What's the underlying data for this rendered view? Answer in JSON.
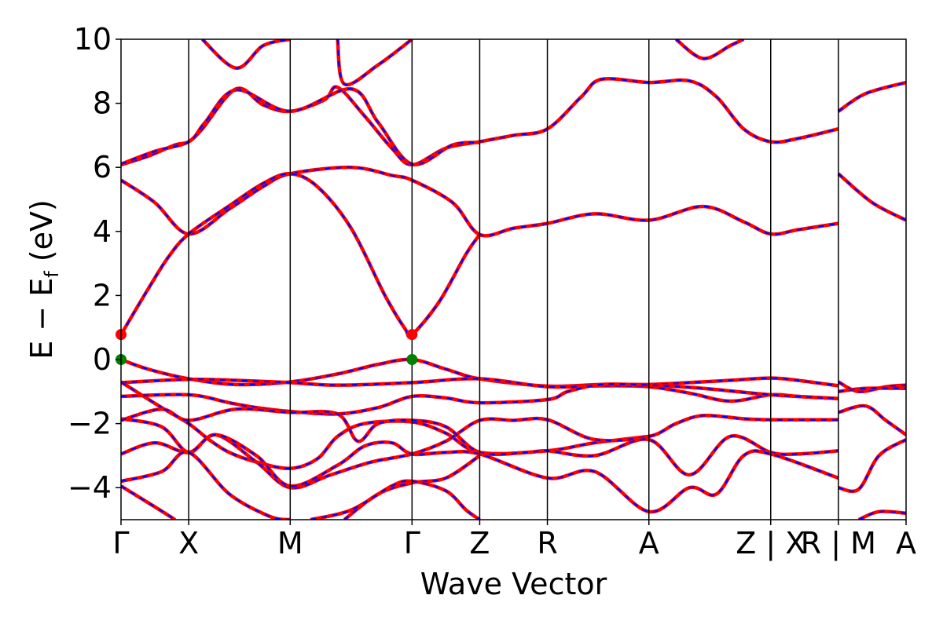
{
  "chart_data": {
    "type": "line",
    "xlabel": "Wave Vector",
    "ylabel": "E − E",
    "ylabel_sub": "f",
    "ylabel_unit": " (eV)",
    "ylim": [
      -5,
      10
    ],
    "yticks": [
      {
        "v": -4,
        "label": "−4"
      },
      {
        "v": -2,
        "label": "−2"
      },
      {
        "v": 0,
        "label": "0"
      },
      {
        "v": 2,
        "label": "2"
      },
      {
        "v": 4,
        "label": "4"
      },
      {
        "v": 6,
        "label": "6"
      },
      {
        "v": 8,
        "label": "8"
      },
      {
        "v": 10,
        "label": "10"
      }
    ],
    "kpath": [
      {
        "label": "Γ",
        "k": 0.0
      },
      {
        "label": "X",
        "k": 0.5
      },
      {
        "label": "M",
        "k": 1.25
      },
      {
        "label": "Γ",
        "k": 2.15
      },
      {
        "label": "Z",
        "k": 2.65
      },
      {
        "label": "R",
        "k": 3.15
      },
      {
        "label": "A",
        "k": 3.9
      },
      {
        "label": "Z | X",
        "k": 4.8
      },
      {
        "label": "R | M",
        "k": 5.3
      },
      {
        "label": "A",
        "k": 5.8
      }
    ],
    "xlim": [
      0,
      5.8
    ],
    "style": {
      "line_color": "#ff0000",
      "dash_color": "#0000ff",
      "cbm_color": "#ff0000",
      "vbm_color": "#008000"
    },
    "markers": [
      {
        "name": "cbm",
        "points": [
          [
            0,
            0.78
          ],
          [
            2.15,
            0.78
          ]
        ]
      },
      {
        "name": "vbm",
        "points": [
          [
            0,
            0
          ],
          [
            2.15,
            0
          ]
        ]
      }
    ],
    "series": [
      {
        "points": [
          [
            0,
            6.08
          ],
          [
            0.2,
            6.35
          ],
          [
            0.4,
            6.7
          ],
          [
            0.5,
            6.8
          ],
          [
            0.6,
            7.2
          ],
          [
            0.85,
            8.45
          ],
          [
            1.05,
            7.95
          ],
          [
            1.25,
            7.75
          ],
          [
            1.5,
            8.1
          ],
          [
            1.6,
            8.5
          ],
          [
            1.8,
            7.6
          ],
          [
            2.0,
            6.6
          ],
          [
            2.15,
            6.08
          ],
          [
            2.4,
            6.6
          ],
          [
            2.65,
            6.8
          ],
          [
            2.9,
            7.0
          ],
          [
            3.15,
            7.2
          ],
          [
            3.4,
            8.2
          ],
          [
            3.55,
            8.75
          ],
          [
            3.9,
            8.65
          ],
          [
            4.2,
            8.7
          ],
          [
            4.4,
            8.2
          ],
          [
            4.6,
            7.2
          ],
          [
            4.8,
            6.8
          ],
          [
            5.0,
            6.9
          ],
          [
            5.3,
            7.2
          ]
        ]
      },
      {
        "points": [
          [
            0,
            6.1
          ],
          [
            0.25,
            6.5
          ],
          [
            0.5,
            6.8
          ],
          [
            0.62,
            7.4
          ],
          [
            0.85,
            8.42
          ],
          [
            1.25,
            7.75
          ],
          [
            1.7,
            8.45
          ],
          [
            1.9,
            7.4
          ],
          [
            2.15,
            6.1
          ],
          [
            2.45,
            6.7
          ],
          [
            2.65,
            6.78
          ]
        ]
      },
      {
        "points": [
          [
            0,
            5.6
          ],
          [
            0.25,
            4.9
          ],
          [
            0.5,
            3.92
          ],
          [
            0.8,
            4.7
          ],
          [
            1.05,
            5.4
          ],
          [
            1.25,
            5.8
          ],
          [
            1.7,
            6.0
          ],
          [
            2.0,
            5.75
          ],
          [
            2.15,
            5.6
          ],
          [
            2.45,
            4.9
          ],
          [
            2.65,
            3.9
          ],
          [
            2.9,
            4.1
          ],
          [
            3.15,
            4.25
          ],
          [
            3.5,
            4.55
          ],
          [
            3.9,
            4.35
          ],
          [
            4.3,
            4.78
          ],
          [
            4.6,
            4.3
          ],
          [
            4.8,
            3.92
          ],
          [
            5.0,
            4.05
          ],
          [
            5.3,
            4.25
          ]
        ]
      },
      {
        "points": [
          [
            0,
            0.78
          ],
          [
            0.2,
            2.2
          ],
          [
            0.35,
            3.2
          ],
          [
            0.5,
            3.92
          ],
          [
            0.8,
            4.8
          ],
          [
            1.05,
            5.5
          ],
          [
            1.25,
            5.8
          ],
          [
            1.45,
            5.4
          ],
          [
            1.7,
            4.1
          ],
          [
            1.95,
            2.0
          ],
          [
            2.1,
            0.95
          ],
          [
            2.15,
            0.78
          ],
          [
            2.35,
            1.8
          ],
          [
            2.55,
            3.3
          ],
          [
            2.65,
            3.9
          ]
        ]
      },
      {
        "points": [
          [
            0,
            0
          ],
          [
            0.2,
            -0.3
          ],
          [
            0.5,
            -0.6
          ],
          [
            0.85,
            -0.78
          ],
          [
            1.25,
            -0.7
          ],
          [
            1.6,
            -0.45
          ],
          [
            1.9,
            -0.15
          ],
          [
            2.15,
            0
          ],
          [
            2.4,
            -0.3
          ],
          [
            2.65,
            -0.6
          ],
          [
            3.15,
            -0.83
          ],
          [
            3.55,
            -0.78
          ],
          [
            3.9,
            -0.78
          ],
          [
            4.2,
            -0.72
          ],
          [
            4.5,
            -0.65
          ],
          [
            4.8,
            -0.58
          ],
          [
            5.0,
            -0.65
          ],
          [
            5.3,
            -0.82
          ]
        ]
      },
      {
        "points": [
          [
            0,
            -0.72
          ],
          [
            0.5,
            -0.62
          ],
          [
            0.85,
            -0.65
          ],
          [
            1.25,
            -0.72
          ],
          [
            1.6,
            -0.8
          ],
          [
            2.15,
            -0.72
          ],
          [
            2.65,
            -0.6
          ],
          [
            3.15,
            -0.85
          ],
          [
            3.55,
            -0.82
          ],
          [
            3.9,
            -0.85
          ],
          [
            4.2,
            -1.05
          ],
          [
            4.5,
            -1.3
          ],
          [
            4.8,
            -1.1
          ],
          [
            5.0,
            -1.15
          ],
          [
            5.3,
            -1.22
          ]
        ]
      },
      {
        "points": [
          [
            0,
            -0.7
          ],
          [
            0.3,
            -1.5
          ],
          [
            0.5,
            -2.0
          ],
          [
            0.65,
            -2.5
          ],
          [
            0.8,
            -2.9
          ],
          [
            1.0,
            -3.2
          ],
          [
            1.25,
            -3.4
          ],
          [
            1.45,
            -3.1
          ],
          [
            1.6,
            -2.4
          ],
          [
            1.8,
            -2.0
          ],
          [
            2.15,
            -1.95
          ],
          [
            2.4,
            -2.3
          ],
          [
            2.65,
            -2.9
          ],
          [
            3.15,
            -2.85
          ],
          [
            3.5,
            -2.6
          ],
          [
            3.9,
            -2.4
          ]
        ]
      },
      {
        "points": [
          [
            0,
            -1.15
          ],
          [
            0.5,
            -1.1
          ],
          [
            0.8,
            -1.35
          ],
          [
            1.0,
            -1.5
          ],
          [
            1.25,
            -1.62
          ],
          [
            1.6,
            -1.7
          ],
          [
            1.9,
            -1.5
          ],
          [
            2.15,
            -1.15
          ],
          [
            2.4,
            -1.2
          ],
          [
            2.65,
            -1.35
          ],
          [
            3.15,
            -1.25
          ],
          [
            3.3,
            -1.0
          ],
          [
            3.55,
            -0.78
          ],
          [
            3.9,
            -0.8
          ],
          [
            4.3,
            -0.9
          ],
          [
            4.8,
            -1.1
          ],
          [
            5.3,
            -1.22
          ]
        ]
      },
      {
        "points": [
          [
            0,
            -1.85
          ],
          [
            0.3,
            -2.1
          ],
          [
            0.5,
            -2.9
          ],
          [
            0.7,
            -2.35
          ],
          [
            1.0,
            -3.2
          ],
          [
            1.25,
            -4.0
          ],
          [
            1.55,
            -3.6
          ],
          [
            1.85,
            -3.2
          ],
          [
            2.15,
            -2.95
          ],
          [
            2.4,
            -2.55
          ],
          [
            2.65,
            -1.9
          ],
          [
            2.9,
            -1.9
          ],
          [
            3.15,
            -1.88
          ],
          [
            3.5,
            -2.5
          ],
          [
            3.9,
            -2.4
          ],
          [
            4.1,
            -2.0
          ],
          [
            4.3,
            -1.75
          ],
          [
            4.6,
            -1.85
          ],
          [
            4.8,
            -1.88
          ],
          [
            5.3,
            -1.88
          ]
        ]
      },
      {
        "points": [
          [
            0,
            -1.9
          ],
          [
            0.3,
            -1.55
          ],
          [
            0.5,
            -1.9
          ],
          [
            0.85,
            -1.55
          ],
          [
            1.25,
            -1.65
          ],
          [
            1.6,
            -1.7
          ],
          [
            1.75,
            -2.55
          ],
          [
            1.9,
            -2.0
          ],
          [
            2.15,
            -1.9
          ],
          [
            2.4,
            -2.1
          ],
          [
            2.65,
            -2.9
          ],
          [
            3.0,
            -2.9
          ],
          [
            3.15,
            -2.85
          ],
          [
            3.5,
            -3.0
          ],
          [
            3.9,
            -2.5
          ],
          [
            4.2,
            -3.6
          ],
          [
            4.5,
            -2.4
          ],
          [
            4.8,
            -2.9
          ],
          [
            5.0,
            -2.95
          ],
          [
            5.3,
            -2.85
          ]
        ]
      },
      {
        "points": [
          [
            0,
            -2.95
          ],
          [
            0.25,
            -2.6
          ],
          [
            0.5,
            -2.9
          ],
          [
            0.7,
            -2.35
          ],
          [
            1.0,
            -3.0
          ],
          [
            1.25,
            -3.95
          ],
          [
            1.6,
            -3.3
          ],
          [
            1.8,
            -2.7
          ],
          [
            2.0,
            -2.6
          ],
          [
            2.15,
            -2.95
          ],
          [
            2.4,
            -2.9
          ],
          [
            2.65,
            -2.95
          ],
          [
            3.15,
            -3.7
          ],
          [
            3.5,
            -3.5
          ],
          [
            3.9,
            -4.75
          ],
          [
            4.2,
            -4.0
          ],
          [
            4.4,
            -4.2
          ],
          [
            4.6,
            -3.0
          ],
          [
            4.8,
            -2.95
          ],
          [
            5.3,
            -3.7
          ]
        ]
      },
      {
        "points": [
          [
            0,
            -3.8
          ],
          [
            0.3,
            -3.5
          ],
          [
            0.5,
            -2.9
          ],
          [
            0.8,
            -4.2
          ],
          [
            1.1,
            -4.9
          ],
          [
            1.25,
            -5.0
          ]
        ]
      },
      {
        "points": [
          [
            0,
            -3.95
          ],
          [
            0.25,
            -4.6
          ],
          [
            0.4,
            -5.0
          ]
        ]
      },
      {
        "points": [
          [
            1.65,
            -5.0
          ],
          [
            1.9,
            -4.2
          ],
          [
            2.15,
            -3.85
          ],
          [
            2.4,
            -3.7
          ],
          [
            2.65,
            -3.0
          ]
        ]
      },
      {
        "points": [
          [
            1.4,
            -5.0
          ],
          [
            1.7,
            -4.7
          ],
          [
            2.0,
            -3.95
          ],
          [
            2.15,
            -3.8
          ],
          [
            2.4,
            -4.1
          ],
          [
            2.55,
            -4.7
          ],
          [
            2.65,
            -5.0
          ]
        ]
      },
      {
        "points": [
          [
            0.6,
            10.0
          ],
          [
            0.85,
            9.1
          ],
          [
            1.05,
            9.8
          ],
          [
            1.25,
            10.0
          ]
        ]
      },
      {
        "points": [
          [
            1.6,
            10.0
          ],
          [
            1.65,
            8.6
          ],
          [
            1.9,
            9.2
          ],
          [
            2.15,
            10.0
          ]
        ]
      },
      {
        "points": [
          [
            4.1,
            10.0
          ],
          [
            4.3,
            9.4
          ],
          [
            4.5,
            9.8
          ],
          [
            4.6,
            10.0
          ]
        ]
      },
      {
        "points": [
          [
            5.3,
            7.75
          ],
          [
            5.5,
            8.3
          ],
          [
            5.8,
            8.65
          ]
        ]
      },
      {
        "points": [
          [
            5.3,
            5.8
          ],
          [
            5.55,
            4.9
          ],
          [
            5.8,
            4.35
          ]
        ]
      },
      {
        "points": [
          [
            5.3,
            -0.7
          ],
          [
            5.45,
            -1.0
          ],
          [
            5.65,
            -0.85
          ],
          [
            5.8,
            -0.8
          ]
        ]
      },
      {
        "points": [
          [
            5.3,
            -1.0
          ],
          [
            5.5,
            -0.9
          ],
          [
            5.8,
            -0.9
          ]
        ]
      },
      {
        "points": [
          [
            5.3,
            -1.65
          ],
          [
            5.5,
            -1.45
          ],
          [
            5.65,
            -1.9
          ],
          [
            5.8,
            -2.35
          ]
        ]
      },
      {
        "points": [
          [
            5.3,
            -4.0
          ],
          [
            5.45,
            -4.05
          ],
          [
            5.6,
            -3.0
          ],
          [
            5.8,
            -2.5
          ]
        ]
      },
      {
        "points": [
          [
            5.45,
            -5.0
          ],
          [
            5.6,
            -4.75
          ],
          [
            5.8,
            -4.8
          ]
        ]
      }
    ]
  }
}
